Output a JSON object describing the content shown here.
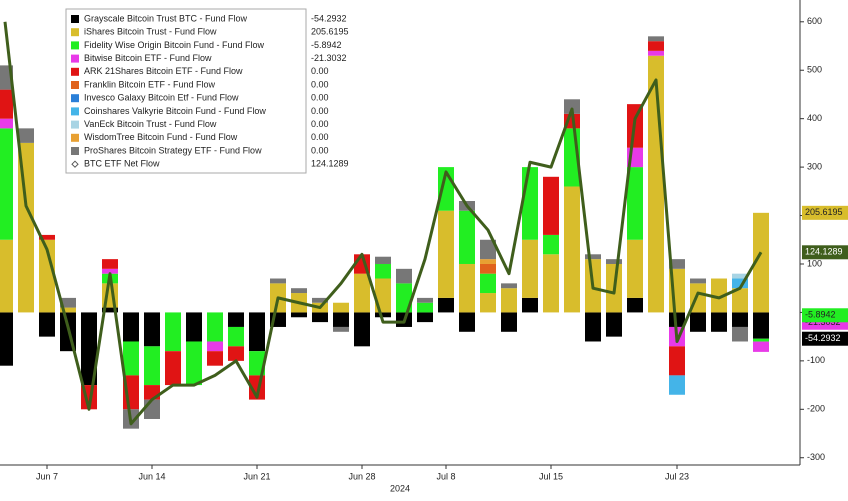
{
  "chart_data": {
    "type": "bar",
    "stacked": true,
    "categories": [
      null,
      null,
      "Jun 7",
      null,
      null,
      null,
      null,
      "Jun 14",
      null,
      null,
      null,
      null,
      "Jun 21",
      null,
      null,
      null,
      null,
      "Jun 28",
      null,
      null,
      null,
      "Jul 8",
      null,
      null,
      null,
      null,
      "Jul 15",
      null,
      null,
      null,
      null,
      null,
      "Jul 23",
      null,
      null,
      null,
      null
    ],
    "x_group_label": "2024",
    "ylim": [
      -315,
      645
    ],
    "yticks": [
      -300,
      -200,
      -100,
      0,
      100,
      200,
      300,
      400,
      500,
      600
    ],
    "series": [
      {
        "name": "Grayscale Bitcoin Trust BTC - Fund Flow",
        "color": "#000000",
        "legend_value": "-54.2932",
        "values": [
          -110,
          0,
          -50,
          -80,
          -150,
          10,
          -60,
          -70,
          0,
          -60,
          0,
          -30,
          -80,
          -30,
          -10,
          -20,
          -30,
          -70,
          -10,
          -30,
          -20,
          30,
          -40,
          0,
          -40,
          30,
          0,
          0,
          -60,
          -50,
          30,
          0,
          -30,
          -40,
          -40,
          -30,
          -54.2932
        ]
      },
      {
        "name": "iShares Bitcoin Trust - Fund Flow",
        "color": "#d8bd2c",
        "legend_value": "205.6195",
        "values": [
          150,
          350,
          150,
          10,
          0,
          50,
          0,
          0,
          0,
          0,
          0,
          0,
          0,
          60,
          40,
          20,
          20,
          80,
          70,
          0,
          0,
          180,
          100,
          40,
          50,
          120,
          120,
          260,
          110,
          100,
          120,
          530,
          90,
          60,
          70,
          50,
          205.6195
        ]
      },
      {
        "name": "Fidelity Wise Origin Bitcoin Fund - Fund Flow",
        "color": "#22ee22",
        "legend_value": "-5.8942",
        "values": [
          230,
          0,
          0,
          0,
          0,
          20,
          -70,
          -80,
          -80,
          -90,
          -60,
          -40,
          -50,
          0,
          0,
          0,
          0,
          0,
          30,
          60,
          20,
          90,
          110,
          40,
          0,
          150,
          40,
          120,
          0,
          0,
          150,
          0,
          0,
          0,
          0,
          0,
          -5.8942
        ]
      },
      {
        "name": "Bitwise Bitcoin ETF - Fund Flow",
        "color": "#e83ae8",
        "legend_value": "-21.3032",
        "values": [
          20,
          0,
          0,
          0,
          0,
          10,
          0,
          0,
          0,
          0,
          -20,
          0,
          0,
          0,
          0,
          0,
          0,
          0,
          0,
          0,
          0,
          0,
          0,
          0,
          0,
          0,
          0,
          0,
          0,
          0,
          40,
          10,
          -40,
          0,
          0,
          0,
          -21.3032
        ]
      },
      {
        "name": "ARK 21Shares Bitcoin ETF - Fund Flow",
        "color": "#e01414",
        "legend_value": "0.00",
        "values": [
          60,
          0,
          10,
          0,
          -50,
          20,
          -70,
          -30,
          -70,
          0,
          -30,
          -30,
          -50,
          0,
          0,
          0,
          0,
          40,
          0,
          0,
          0,
          0,
          0,
          0,
          0,
          0,
          120,
          30,
          0,
          0,
          90,
          20,
          -60,
          0,
          0,
          0,
          0
        ]
      },
      {
        "name": "Franklin Bitcoin ETF - Fund Flow",
        "color": "#e0621c",
        "legend_value": "0.00",
        "values": [
          0,
          0,
          0,
          0,
          0,
          0,
          0,
          0,
          0,
          0,
          0,
          0,
          0,
          0,
          0,
          0,
          0,
          0,
          0,
          0,
          0,
          0,
          0,
          20,
          0,
          0,
          0,
          0,
          0,
          0,
          0,
          0,
          0,
          0,
          0,
          0,
          0
        ]
      },
      {
        "name": "Invesco Galaxy Bitcoin Etf - Fund Flow",
        "color": "#2a7fd8",
        "legend_value": "0.00",
        "values": [
          0,
          0,
          0,
          0,
          0,
          0,
          0,
          0,
          0,
          0,
          0,
          0,
          0,
          0,
          0,
          0,
          0,
          0,
          0,
          0,
          0,
          0,
          0,
          0,
          0,
          0,
          0,
          0,
          0,
          0,
          0,
          0,
          0,
          0,
          0,
          0,
          0
        ]
      },
      {
        "name": "Coinshares Valkyrie Bitcoin Fund - Fund Flow",
        "color": "#44b4e8",
        "legend_value": "0.00",
        "values": [
          0,
          0,
          0,
          0,
          0,
          0,
          0,
          0,
          0,
          0,
          0,
          0,
          0,
          0,
          0,
          0,
          0,
          0,
          0,
          0,
          0,
          0,
          0,
          0,
          0,
          0,
          0,
          0,
          0,
          0,
          0,
          0,
          -40,
          0,
          0,
          20,
          0
        ]
      },
      {
        "name": "VanEck Bitcoin Trust - Fund Flow",
        "color": "#a8d4e4",
        "legend_value": "0.00",
        "values": [
          0,
          0,
          0,
          0,
          0,
          0,
          0,
          0,
          0,
          0,
          0,
          0,
          0,
          0,
          0,
          0,
          0,
          0,
          0,
          0,
          0,
          0,
          0,
          0,
          0,
          0,
          0,
          0,
          0,
          0,
          0,
          0,
          0,
          0,
          0,
          10,
          0
        ]
      },
      {
        "name": "WisdomTree Bitcoin Fund - Fund Flow",
        "color": "#e8a032",
        "legend_value": "0.00",
        "values": [
          0,
          0,
          0,
          0,
          0,
          0,
          0,
          0,
          0,
          0,
          0,
          0,
          0,
          0,
          0,
          0,
          0,
          0,
          0,
          0,
          0,
          0,
          0,
          10,
          0,
          0,
          0,
          0,
          0,
          0,
          0,
          0,
          0,
          0,
          0,
          0,
          0
        ]
      },
      {
        "name": "ProShares Bitcoin Strategy ETF - Fund Flow",
        "color": "#777777",
        "legend_value": "0.00",
        "values": [
          50,
          30,
          0,
          20,
          0,
          0,
          -40,
          -40,
          0,
          0,
          0,
          0,
          0,
          10,
          10,
          10,
          -10,
          0,
          15,
          30,
          10,
          0,
          20,
          40,
          10,
          0,
          0,
          30,
          10,
          10,
          0,
          10,
          20,
          10,
          0,
          -30,
          0
        ]
      }
    ],
    "net_flow": {
      "name": "BTC ETF Net Flow",
      "color": "#3f5e1c",
      "values": [
        600,
        220,
        130,
        -30,
        -200,
        80,
        -230,
        -180,
        -150,
        -150,
        -130,
        -100,
        -175,
        30,
        20,
        10,
        60,
        120,
        -20,
        -20,
        110,
        290,
        220,
        170,
        80,
        310,
        300,
        420,
        50,
        40,
        400,
        480,
        -60,
        40,
        30,
        50,
        124.1289
      ]
    }
  }
}
